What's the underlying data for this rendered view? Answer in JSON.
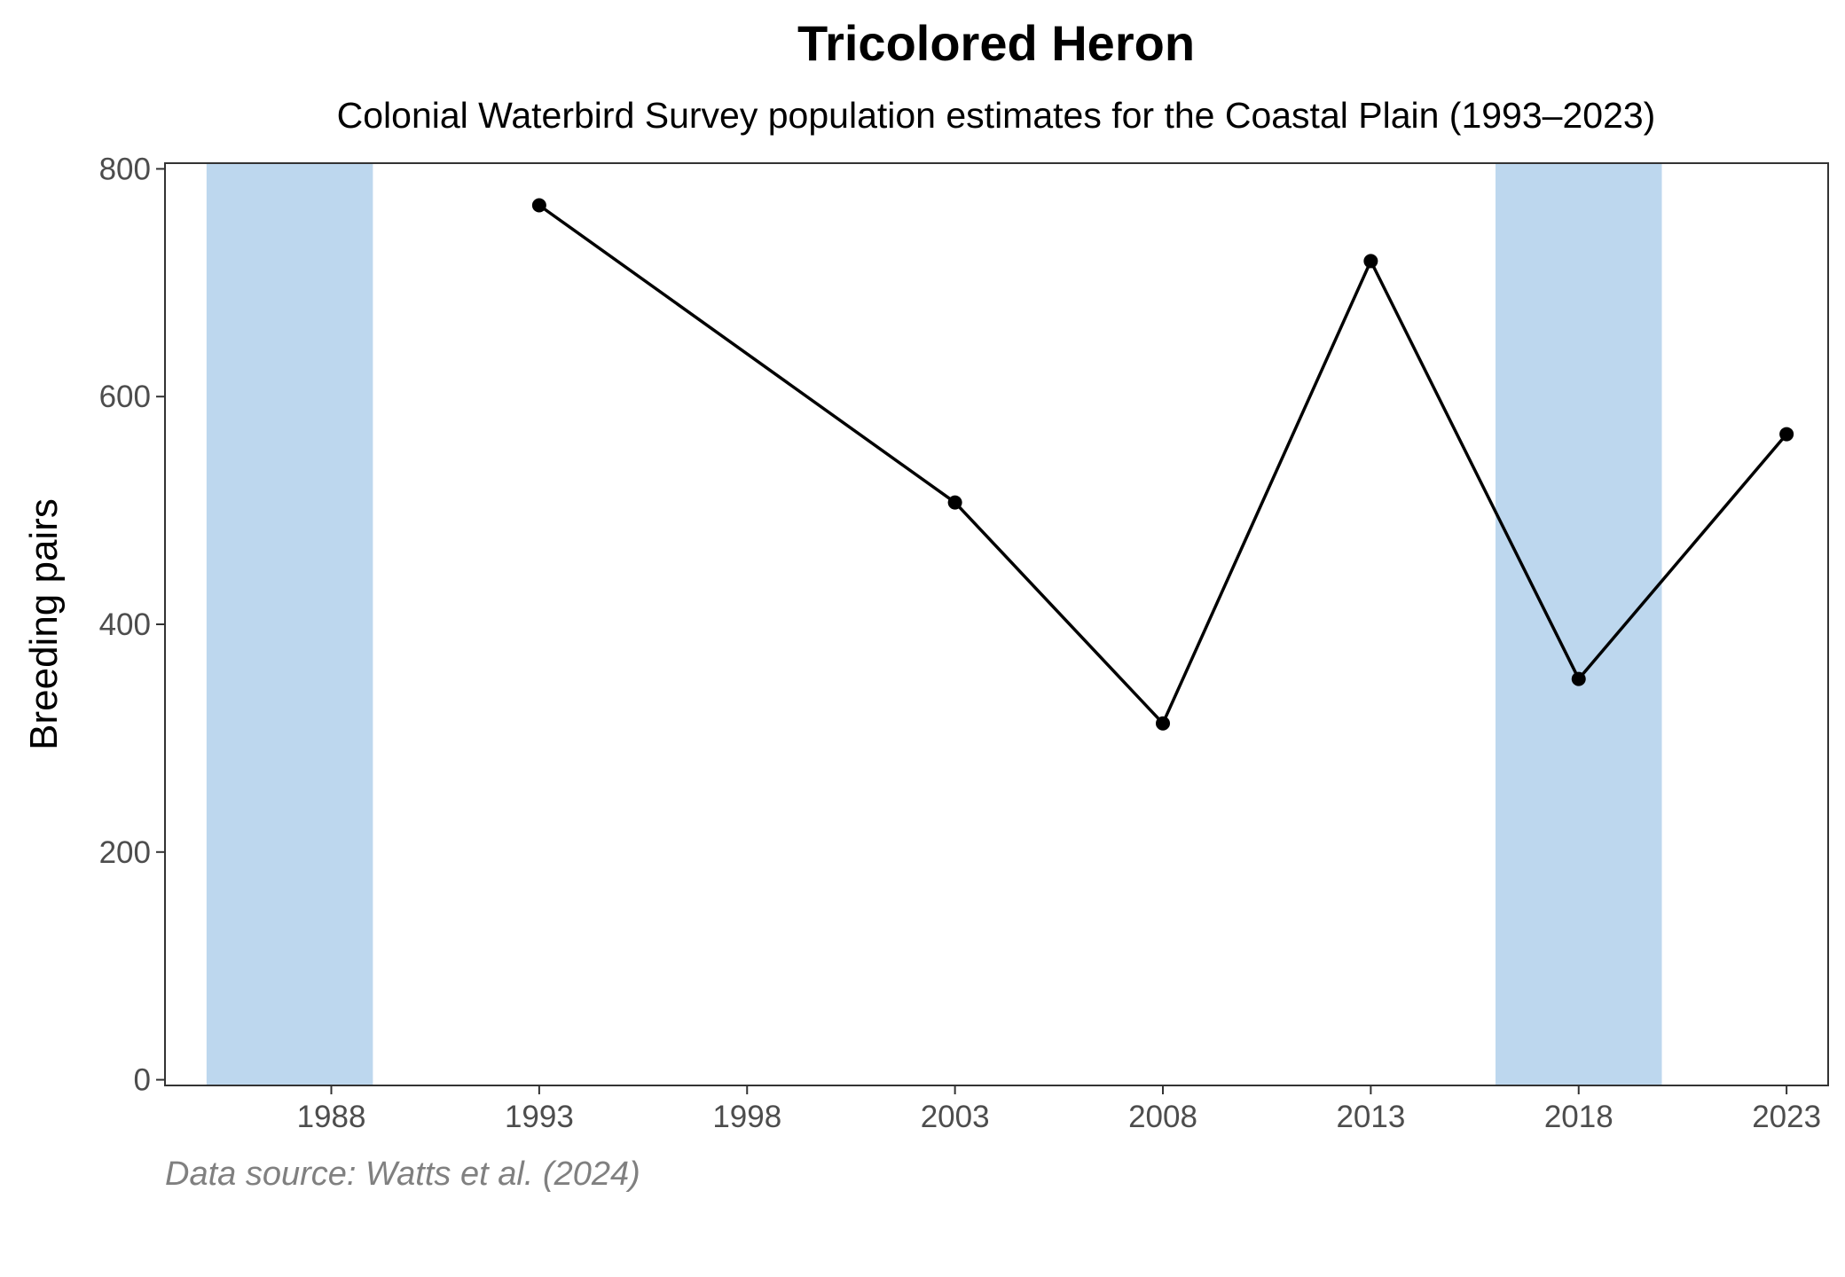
{
  "chart_data": {
    "type": "line",
    "title": "Tricolored Heron",
    "subtitle": "Colonial Waterbird Survey population estimates for the Coastal Plain (1993–2023)",
    "xlabel": "",
    "ylabel": "Breeding pairs",
    "caption": "Data source: Watts et al. (2024)",
    "x": [
      1993,
      2003,
      2008,
      2013,
      2018,
      2023
    ],
    "series": [
      {
        "values": [
          768,
          507,
          313,
          719,
          352,
          567
        ]
      }
    ],
    "shaded_periods": [
      {
        "start": 1985,
        "end": 1989
      },
      {
        "start": 2016,
        "end": 2020
      }
    ],
    "xlim": [
      1984,
      2024
    ],
    "ylim": [
      -5,
      805
    ],
    "x_ticks": [
      1988,
      1993,
      1998,
      2003,
      2008,
      2013,
      2018,
      2023
    ],
    "y_ticks": [
      0,
      200,
      400,
      600,
      800
    ],
    "grid": false,
    "colors": {
      "line": "#000000",
      "shade": "#bdd7ee",
      "axis": "#333333",
      "tick_text": "#4d4d4d",
      "caption": "#808080"
    }
  }
}
